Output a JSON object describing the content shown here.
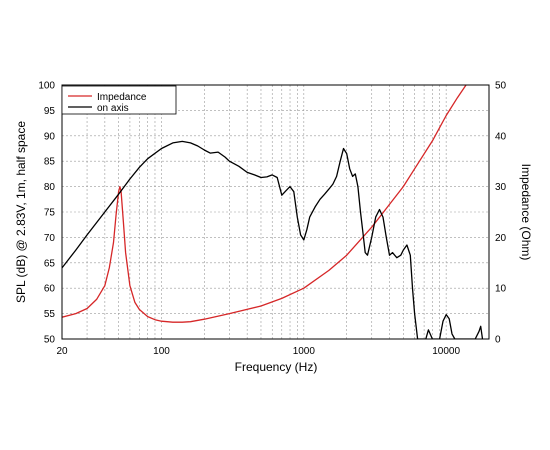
{
  "chart_data": {
    "type": "line",
    "xlabel": "Frequency (Hz)",
    "ylabel": "SPL (dB) @ 2.83V, 1m, half space",
    "y2label": "Impedance (Ohm)",
    "x_scale": "log",
    "xlim": [
      20,
      20000
    ],
    "ylim": [
      50,
      100
    ],
    "y2lim": [
      0,
      50
    ],
    "x_ticks": [
      20,
      100,
      1000,
      10000
    ],
    "x_tick_labels": [
      "20",
      "100",
      "1000",
      "10000"
    ],
    "y_ticks": [
      50,
      55,
      60,
      65,
      70,
      75,
      80,
      85,
      90,
      95,
      100
    ],
    "y2_ticks": [
      0,
      10,
      20,
      30,
      40,
      50
    ],
    "grid": true,
    "legend": "top-left",
    "series": [
      {
        "name": "Impedance",
        "axis": "right",
        "color": "#d62728",
        "x": [
          20,
          25,
          30,
          35,
          40,
          43,
          46,
          48,
          50,
          51,
          52,
          54,
          56,
          60,
          65,
          70,
          80,
          90,
          100,
          120,
          140,
          160,
          200,
          300,
          500,
          700,
          1000,
          1500,
          2000,
          3000,
          4000,
          5000,
          6000,
          8000,
          10000,
          12000,
          15000,
          17000
        ],
        "y": [
          4.3,
          5.0,
          6.0,
          7.8,
          10.5,
          14.0,
          19.0,
          24.5,
          29.0,
          30.0,
          29.0,
          23.0,
          17.0,
          10.5,
          7.2,
          5.8,
          4.4,
          3.8,
          3.5,
          3.3,
          3.3,
          3.4,
          3.9,
          5.0,
          6.5,
          8.0,
          10.0,
          13.5,
          16.5,
          22.0,
          26.5,
          30.0,
          33.5,
          39.0,
          44.0,
          47.5,
          51.5,
          53.0
        ]
      },
      {
        "name": "on axis",
        "axis": "left",
        "color": "#000000",
        "x": [
          20,
          25,
          30,
          40,
          50,
          60,
          70,
          80,
          100,
          120,
          140,
          160,
          180,
          200,
          220,
          250,
          280,
          300,
          350,
          400,
          450,
          500,
          550,
          600,
          650,
          700,
          750,
          800,
          850,
          900,
          950,
          1000,
          1050,
          1100,
          1200,
          1300,
          1400,
          1500,
          1600,
          1700,
          1800,
          1900,
          2000,
          2100,
          2200,
          2300,
          2400,
          2500,
          2600,
          2700,
          2800,
          3000,
          3200,
          3400,
          3600,
          3800,
          4000,
          4200,
          4500,
          4800,
          5000,
          5300,
          5600,
          5800,
          6000,
          6300,
          6600,
          7000,
          7200,
          7500,
          8000,
          8300,
          8500,
          9000,
          9500,
          10000,
          10500,
          11000,
          11500,
          12000,
          14000,
          16000,
          17000,
          17500,
          18000
        ],
        "y": [
          64,
          67.5,
          70.5,
          75,
          78.5,
          81.5,
          83.8,
          85.5,
          87.5,
          88.6,
          88.9,
          88.6,
          88.0,
          87.2,
          86.6,
          86.8,
          85.8,
          85.0,
          84.0,
          82.8,
          82.3,
          81.8,
          81.9,
          82.3,
          81.8,
          78.3,
          79.2,
          80.0,
          79.0,
          74.0,
          70.5,
          69.5,
          71.5,
          74.0,
          76.0,
          77.5,
          78.5,
          79.5,
          80.5,
          82.0,
          85.0,
          87.5,
          86.5,
          83.5,
          82.0,
          82.5,
          80.0,
          75.0,
          71.0,
          67.0,
          66.5,
          70.0,
          74.0,
          75.5,
          74.0,
          70.0,
          66.5,
          67.0,
          66.0,
          66.5,
          67.5,
          68.5,
          66.5,
          60.0,
          55.0,
          50.0,
          50,
          50,
          50,
          51.8,
          50,
          50,
          50,
          50,
          53.5,
          54.8,
          54.0,
          51.0,
          50,
          50,
          50,
          50,
          51.5,
          52.5,
          50
        ]
      }
    ]
  }
}
